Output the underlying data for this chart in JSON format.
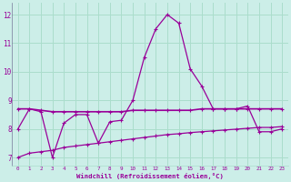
{
  "xlabel": "Windchill (Refroidissement éolien,°C)",
  "bg_color": "#cceee8",
  "grid_color": "#aaddcc",
  "line_color": "#990099",
  "x_hours": [
    0,
    1,
    2,
    3,
    4,
    5,
    6,
    7,
    8,
    9,
    10,
    11,
    12,
    13,
    14,
    15,
    16,
    17,
    18,
    19,
    20,
    21,
    22,
    23
  ],
  "series1": [
    8.0,
    8.7,
    8.6,
    7.0,
    8.2,
    8.5,
    8.5,
    7.5,
    8.25,
    8.3,
    9.0,
    10.5,
    11.5,
    12.0,
    11.7,
    10.1,
    9.5,
    8.7,
    8.7,
    8.7,
    8.8,
    7.9,
    7.9,
    8.0
  ],
  "series2": [
    8.7,
    8.7,
    8.65,
    8.6,
    8.6,
    8.6,
    8.6,
    8.6,
    8.6,
    8.6,
    8.65,
    8.65,
    8.65,
    8.65,
    8.65,
    8.65,
    8.7,
    8.7,
    8.7,
    8.7,
    8.7,
    8.7,
    8.7,
    8.7
  ],
  "series3": [
    7.0,
    7.15,
    7.2,
    7.25,
    7.35,
    7.4,
    7.45,
    7.5,
    7.55,
    7.6,
    7.65,
    7.7,
    7.75,
    7.8,
    7.83,
    7.87,
    7.9,
    7.93,
    7.96,
    7.99,
    8.02,
    8.05,
    8.05,
    8.08
  ],
  "ylim": [
    6.7,
    12.4
  ],
  "yticks": [
    7,
    8,
    9,
    10,
    11,
    12
  ],
  "xlim": [
    -0.5,
    23.5
  ],
  "xticks": [
    0,
    1,
    2,
    3,
    4,
    5,
    6,
    7,
    8,
    9,
    10,
    11,
    12,
    13,
    14,
    15,
    16,
    17,
    18,
    19,
    20,
    21,
    22,
    23
  ]
}
